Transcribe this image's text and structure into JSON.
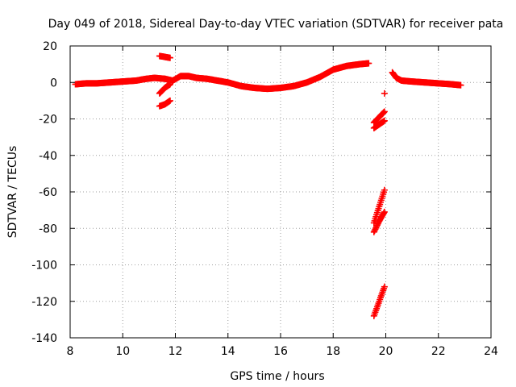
{
  "chart_data": {
    "type": "scatter",
    "title": "Day 049 of 2018, Sidereal Day-to-day VTEC variation (SDTVAR) for receiver pata",
    "xlabel": "GPS time / hours",
    "ylabel": "SDTVAR / TECUs",
    "xlim": [
      8,
      24
    ],
    "ylim": [
      -140,
      20
    ],
    "xticks": [
      8,
      10,
      12,
      14,
      16,
      18,
      20,
      22,
      24
    ],
    "yticks": [
      20,
      0,
      -20,
      -40,
      -60,
      -80,
      -100,
      -120,
      -140
    ],
    "grid": true,
    "marker": "plus",
    "color": "#ff0000",
    "series": [
      {
        "name": "main-track",
        "x": [
          8.2,
          8.6,
          9.0,
          9.5,
          10.0,
          10.5,
          10.9,
          11.2,
          11.6,
          11.9,
          12.2,
          12.5,
          12.8,
          13.2,
          13.6,
          14.0,
          14.5,
          15.0,
          15.5,
          16.0,
          16.5,
          17.0,
          17.5,
          18.0,
          18.5,
          19.0,
          19.35
        ],
        "y": [
          -1,
          -0.5,
          -0.5,
          0,
          0.5,
          1,
          2,
          2.5,
          2,
          1,
          3.5,
          3.5,
          2.5,
          2,
          1,
          0,
          -2,
          -3,
          -3.5,
          -3,
          -2,
          0,
          3,
          7,
          9,
          10,
          10.5
        ]
      },
      {
        "name": "seg-11-upper",
        "x": [
          11.4,
          11.6,
          11.8
        ],
        "y": [
          14.5,
          14,
          13.5
        ]
      },
      {
        "name": "seg-11-lower-a",
        "x": [
          11.4,
          11.6,
          11.8
        ],
        "y": [
          -6,
          -3,
          -1
        ]
      },
      {
        "name": "seg-11-lower-b",
        "x": [
          11.4,
          11.6,
          11.8
        ],
        "y": [
          -13,
          -12,
          -10
        ]
      },
      {
        "name": "seg-20-recovery",
        "x": [
          20.25,
          20.4,
          20.6,
          21.0,
          21.5,
          22.0,
          22.5,
          22.85
        ],
        "y": [
          5.5,
          2.5,
          1,
          0.5,
          0,
          -0.5,
          -1,
          -1.5
        ]
      },
      {
        "name": "seg-19.5-a",
        "x": [
          19.55,
          19.75,
          19.95
        ],
        "y": [
          -25,
          -23,
          -21
        ]
      },
      {
        "name": "seg-19.5-b",
        "x": [
          19.55,
          19.75,
          19.95
        ],
        "y": [
          -22,
          -19,
          -16
        ]
      },
      {
        "name": "seg-19.5-c",
        "x": [
          19.55,
          19.75,
          19.95
        ],
        "y": [
          -77,
          -68,
          -59
        ]
      },
      {
        "name": "seg-19.5-d",
        "x": [
          19.55,
          19.75,
          19.95
        ],
        "y": [
          -82,
          -76,
          -71
        ]
      },
      {
        "name": "seg-19.5-e",
        "x": [
          19.55,
          19.75,
          19.95
        ],
        "y": [
          -128,
          -120,
          -112
        ]
      },
      {
        "name": "seg-19.95-single",
        "x": [
          19.95
        ],
        "y": [
          -6
        ]
      }
    ]
  }
}
